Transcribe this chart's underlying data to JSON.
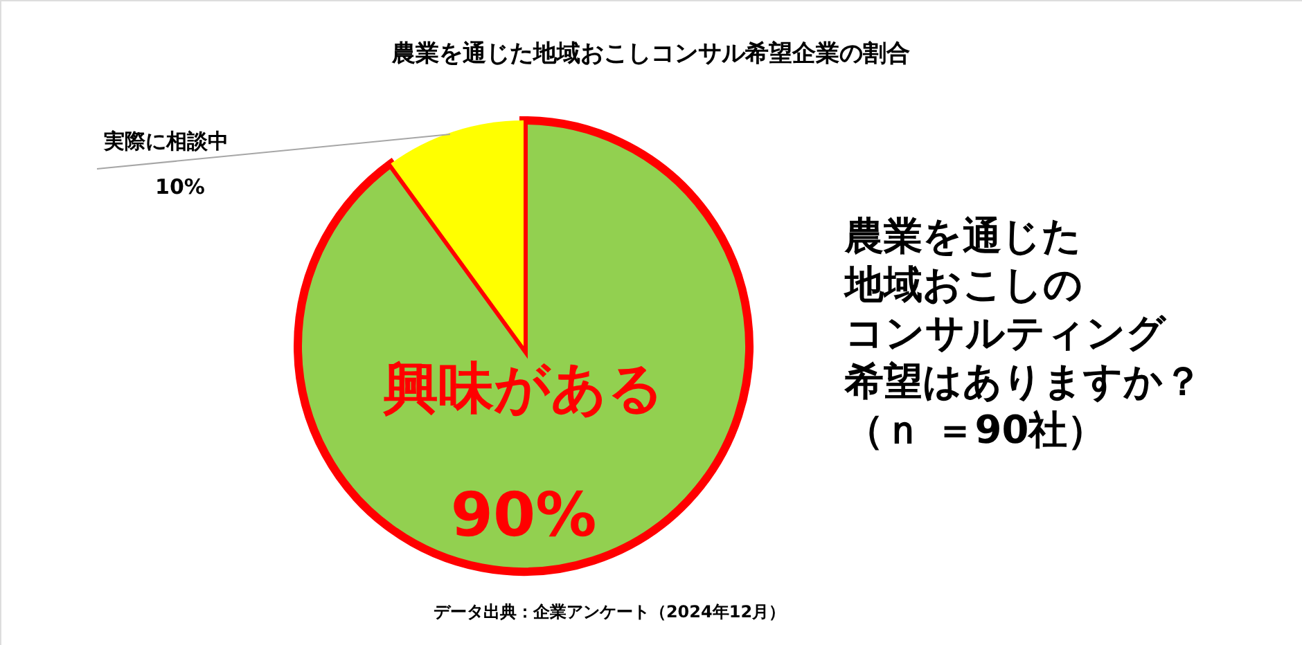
{
  "chart_data": {
    "type": "pie",
    "title": "農業を通じた地域おこしコンサル希望企業の割合",
    "categories": [
      "興味がある",
      "実際に相談中"
    ],
    "values": [
      90,
      10
    ],
    "colors": [
      "#92d050",
      "#ffff00"
    ],
    "value_labels": [
      "90%",
      "10%"
    ],
    "legend": false,
    "annotations": [
      "データ出典：企業アンケート（2024年12月）",
      "農業を通じた",
      "地域おこしの",
      "コンサルティング",
      "希望はありますか？",
      "（ｎ ＝90社）"
    ]
  }
}
